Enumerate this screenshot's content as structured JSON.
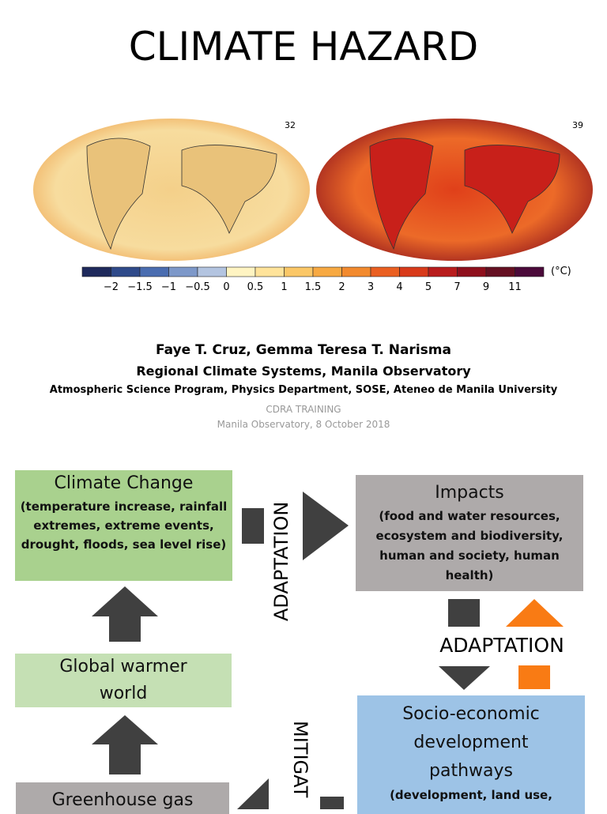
{
  "header": {
    "title": "CLIMATE HAZARD"
  },
  "maps": {
    "left_label": "32",
    "right_label": "39",
    "colorbar": {
      "ticks": [
        "−2",
        "−1.5",
        "−1",
        "−0.5",
        "0",
        "0.5",
        "1",
        "1.5",
        "2",
        "3",
        "4",
        "5",
        "7",
        "9",
        "11"
      ],
      "unit": "(°C)"
    }
  },
  "credits": {
    "authors": "Faye T. Cruz, Gemma Teresa T. Narisma",
    "affiliation_1": "Regional Climate Systems, Manila Observatory",
    "affiliation_2": "Atmospheric Science Program, Physics Department, SOSE, Ateneo de Manila University",
    "event": "CDRA TRAINING",
    "venue_date": "Manila Observatory, 8 October 2018"
  },
  "diagram": {
    "nodes": [
      {
        "title": "Climate Change",
        "detail": "(temperature increase, rainfall extremes, extreme events, drought, floods, sea level rise)"
      },
      {
        "title": "Impacts",
        "detail": "(food and water resources, ecosystem and biodiversity, human and society, human health)"
      },
      {
        "title": "Global warmer world"
      },
      {
        "title": "Socio-economic development pathways",
        "detail": "(development, land use,"
      },
      {
        "title": "Greenhouse gas"
      }
    ],
    "labels": [
      "ADAPTATION",
      "ADAPTATION",
      "MITIGAT"
    ]
  }
}
